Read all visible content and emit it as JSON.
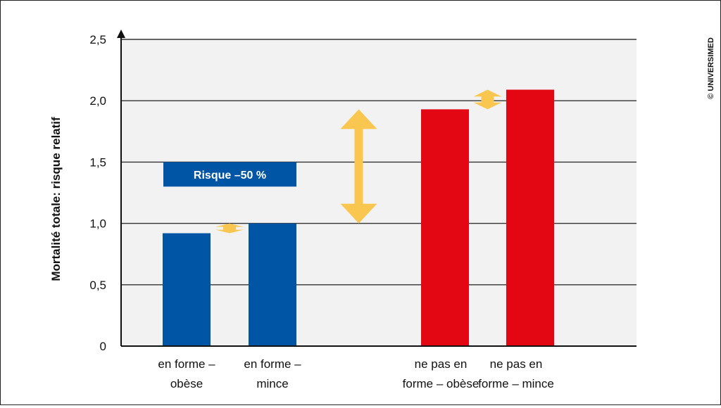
{
  "chart_data": {
    "type": "bar",
    "ylabel": "Mortalité totale: risque relatif",
    "ylim": [
      0,
      2.5
    ],
    "yticks": [
      0,
      0.5,
      1.0,
      1.5,
      2.0,
      2.5
    ],
    "ytick_labels": [
      "0",
      "0,5",
      "1,0",
      "1,5",
      "2,0",
      "2,5"
    ],
    "grid": true,
    "categories": [
      [
        "en forme –",
        "obèse"
      ],
      [
        "en forme –",
        "mince"
      ],
      [
        "ne pas en",
        "forme – obèse"
      ],
      [
        "ne pas en",
        "forme – mince"
      ]
    ],
    "values": [
      0.92,
      1.0,
      1.93,
      2.09
    ],
    "colors": [
      "#0055a4",
      "#0055a4",
      "#e30613",
      "#e30613"
    ],
    "annotation_box": {
      "text": "Risque –50 %",
      "y_range": [
        1.3,
        1.5
      ],
      "color": "#0055a4"
    },
    "arrows": [
      {
        "from": 0.92,
        "to": 1.0,
        "between": [
          0,
          1
        ]
      },
      {
        "from": 1.0,
        "to": 1.93,
        "between": [
          1,
          2
        ]
      },
      {
        "from": 1.93,
        "to": 2.09,
        "between": [
          2,
          3
        ]
      }
    ],
    "arrow_color": "#f9c74f",
    "grid_color": "#333333",
    "plot_bg": "#f2f2f2"
  },
  "copyright": "© UNIVERSIMED"
}
